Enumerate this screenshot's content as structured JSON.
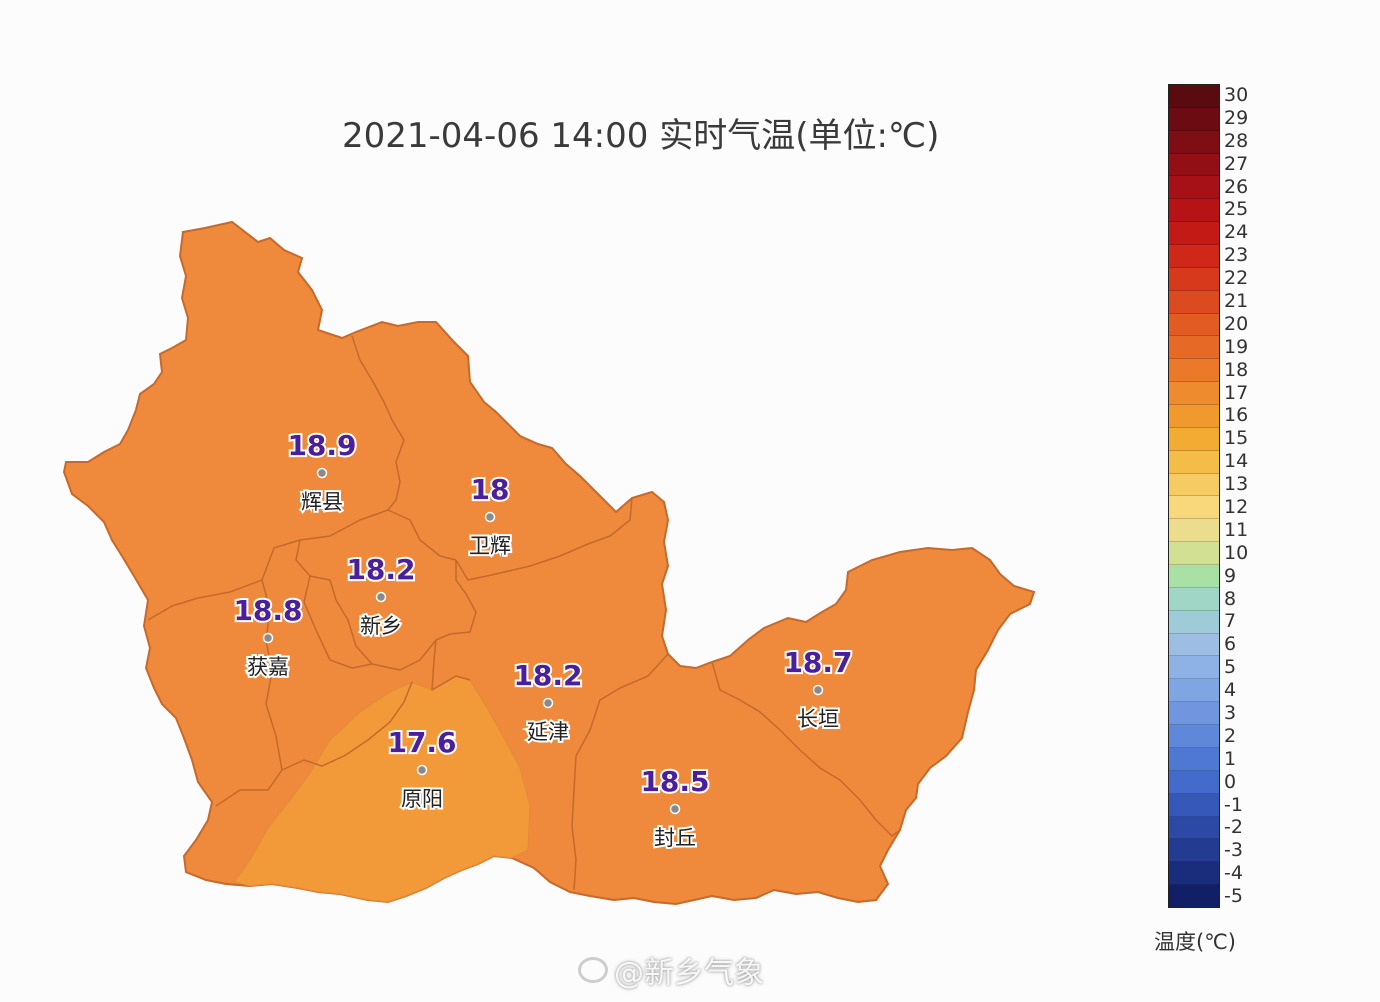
{
  "title": "2021-04-06 14:00 实时气温(单位:℃)",
  "map": {
    "fill_main": "#ef8a3c",
    "fill_cool": "#f39a3a",
    "border": "#c7692a",
    "stations": [
      {
        "id": "huixian",
        "name": "辉县",
        "value": "18.9"
      },
      {
        "id": "weihui",
        "name": "卫辉",
        "value": "18"
      },
      {
        "id": "xinxiang",
        "name": "新乡",
        "value": "18.2"
      },
      {
        "id": "huojia",
        "name": "获嘉",
        "value": "18.8"
      },
      {
        "id": "yanjin",
        "name": "延津",
        "value": "18.2"
      },
      {
        "id": "yuanyang",
        "name": "原阳",
        "value": "17.6"
      },
      {
        "id": "fengqiu",
        "name": "封丘",
        "value": "18.5"
      },
      {
        "id": "changyuan",
        "name": "长垣",
        "value": "18.7"
      }
    ]
  },
  "legend": {
    "unit": "温度(℃)",
    "labels": [
      "30",
      "29",
      "28",
      "27",
      "26",
      "25",
      "24",
      "23",
      "22",
      "21",
      "20",
      "19",
      "18",
      "17",
      "16",
      "15",
      "14",
      "13",
      "12",
      "11",
      "10",
      "9",
      "8",
      "7",
      "6",
      "5",
      "4",
      "3",
      "2",
      "1",
      "0",
      "-1",
      "-2",
      "-3",
      "-4",
      "-5"
    ],
    "colors": [
      "#5a0b10",
      "#6c0c12",
      "#7e0d14",
      "#920f16",
      "#a51117",
      "#b61316",
      "#c41a16",
      "#cf2818",
      "#d6391c",
      "#dc4a20",
      "#e15b23",
      "#e66a26",
      "#ea7a2a",
      "#ee8b2e",
      "#f09a2e",
      "#f2ab33",
      "#f4bd47",
      "#f6cc62",
      "#f7d87c",
      "#ecdd8e",
      "#d2e094",
      "#a9e0a4",
      "#9fd6c5",
      "#9ecbd7",
      "#9dbde2",
      "#8fb2e6",
      "#80a5e3",
      "#6f96df",
      "#5f87da",
      "#4f78d3",
      "#426bcb",
      "#3659b9",
      "#2c4aa5",
      "#233b91",
      "#1a2d7c",
      "#111f66"
    ]
  },
  "watermark": "@新乡气象"
}
